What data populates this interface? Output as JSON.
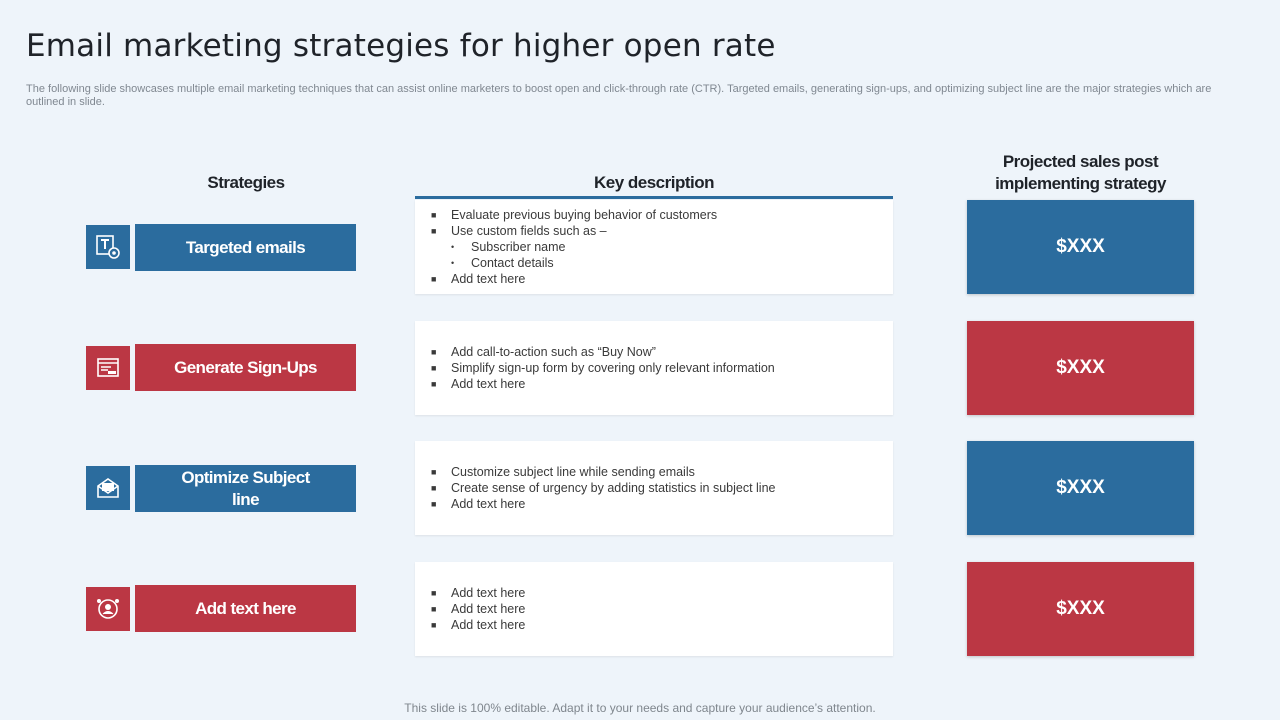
{
  "title": "Email marketing strategies for higher open rate",
  "subtitle": "The following slide showcases multiple email marketing techniques that can assist online marketers to boost open and click-through rate (CTR). Targeted emails, generating sign-ups, and optimizing subject line are the major strategies which are outlined in slide.",
  "headers": {
    "strategies": "Strategies",
    "key_description": "Key description",
    "projected": "Projected sales post implementing strategy"
  },
  "colors": {
    "blue": "#2b6c9e",
    "red": "#bb3744"
  },
  "rows": [
    {
      "icon": "email-settings-icon",
      "strategy": "Targeted emails",
      "color": "blue",
      "description": [
        {
          "text": "Evaluate previous buying behavior of customers",
          "level": 1
        },
        {
          "text": "Use custom fields such as –",
          "level": 1
        },
        {
          "text": "Subscriber name",
          "level": 2
        },
        {
          "text": "Contact details",
          "level": 2
        },
        {
          "text": "Add text here",
          "level": 1
        }
      ],
      "projected": "$XXX"
    },
    {
      "icon": "signup-form-icon",
      "strategy": "Generate Sign-Ups",
      "color": "red",
      "description": [
        {
          "text": "Add call-to-action such as “Buy Now”",
          "level": 1
        },
        {
          "text": "Simplify sign-up form by covering only relevant information",
          "level": 1
        },
        {
          "text": "Add text here",
          "level": 1
        }
      ],
      "projected": "$XXX"
    },
    {
      "icon": "open-envelope-icon",
      "strategy": "Optimize Subject line",
      "color": "blue",
      "description": [
        {
          "text": "Customize subject line while sending emails",
          "level": 1
        },
        {
          "text": "Create sense of urgency by adding statistics in subject line",
          "level": 1
        },
        {
          "text": "Add text here",
          "level": 1
        }
      ],
      "projected": "$XXX"
    },
    {
      "icon": "user-network-icon",
      "strategy": "Add text here",
      "color": "red",
      "description": [
        {
          "text": "Add text here",
          "level": 1
        },
        {
          "text": "Add text here",
          "level": 1
        },
        {
          "text": "Add text here",
          "level": 1
        }
      ],
      "projected": "$XXX"
    }
  ],
  "footer": "This slide is 100% editable. Adapt it to your needs and capture your audience’s attention."
}
